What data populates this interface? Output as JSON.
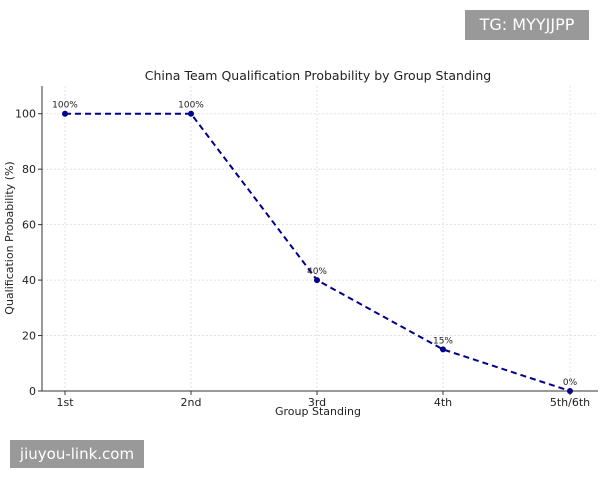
{
  "chart_data": {
    "type": "line",
    "title": "China Team Qualification Probability by Group Standing",
    "xlabel": "Group Standing",
    "ylabel": "Qualification Probability (%)",
    "categories": [
      "1st",
      "2nd",
      "3rd",
      "4th",
      "5th/6th"
    ],
    "series": [
      {
        "values": [
          100,
          100,
          40,
          15,
          0
        ],
        "labels": [
          "100%",
          "100%",
          "40%",
          "15%",
          "0%"
        ],
        "color": "#00008b",
        "style": "dashed",
        "marker": "circle"
      }
    ],
    "ylim": [
      0,
      110
    ],
    "yticks": [
      0,
      20,
      40,
      60,
      80,
      100
    ],
    "grid": true
  },
  "watermarks": {
    "top": "TG: MYYJJPP",
    "bottom": "jiuyou-link.com"
  }
}
